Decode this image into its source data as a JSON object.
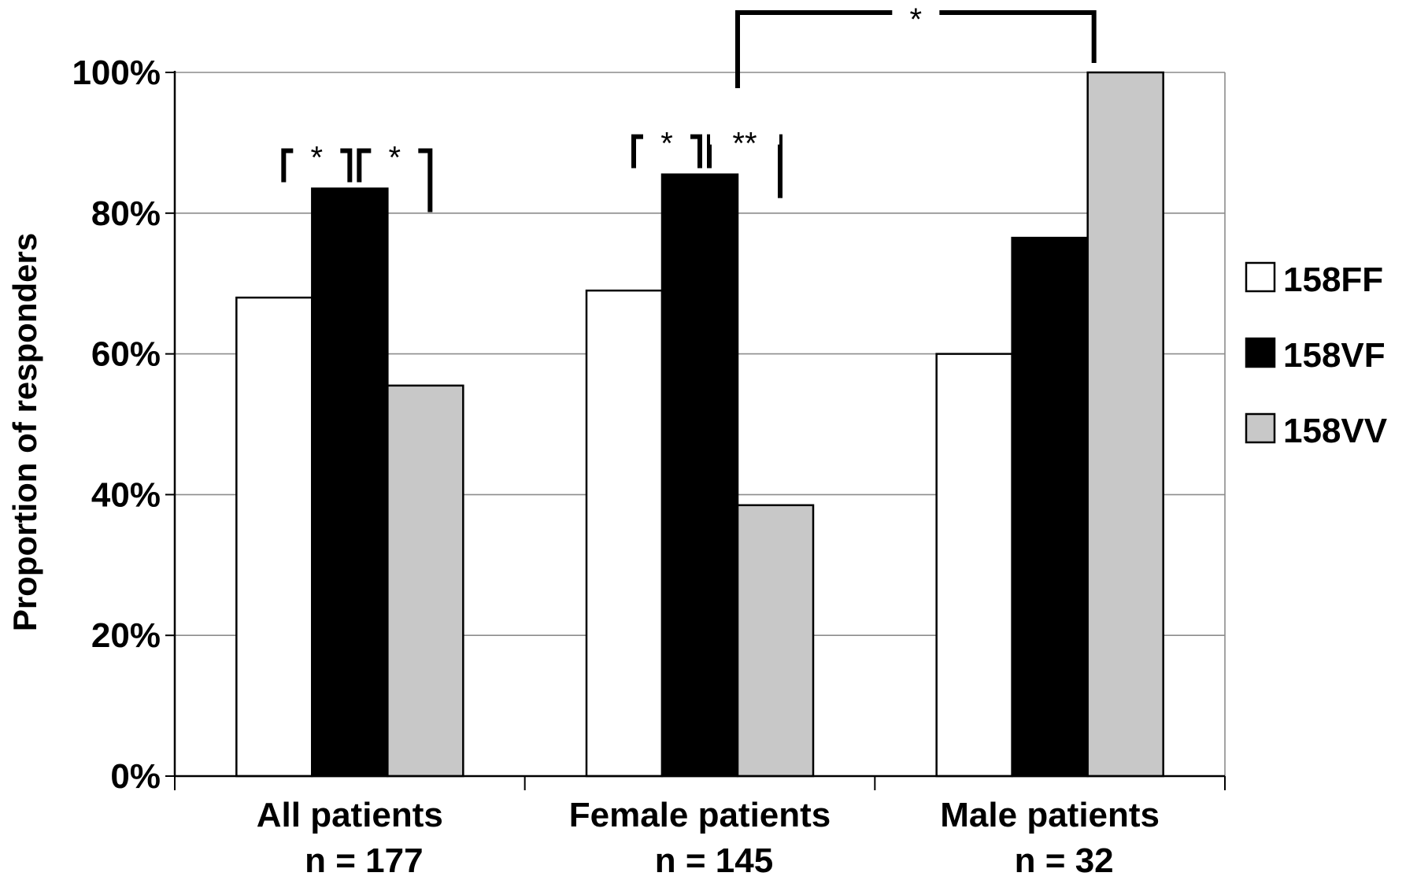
{
  "chart_data": {
    "type": "bar",
    "title": "",
    "xlabel": "",
    "ylabel": "Proportion of responders",
    "ylim": [
      0,
      100
    ],
    "yticks": [
      "0%",
      "20%",
      "40%",
      "60%",
      "80%",
      "100%"
    ],
    "grid": true,
    "legend_position": "right",
    "categories": [
      {
        "label": "All patients",
        "sublabel": "n = 177"
      },
      {
        "label": "Female patients",
        "sublabel": "n = 145"
      },
      {
        "label": "Male patients",
        "sublabel": "n = 32"
      }
    ],
    "series": [
      {
        "name": "158FF",
        "color": "#ffffff",
        "values": [
          68,
          69,
          60
        ]
      },
      {
        "name": "158VF",
        "color": "#000000",
        "values": [
          83.5,
          85.5,
          76.5
        ]
      },
      {
        "name": "158VV",
        "color": "#c8c8c8",
        "values": [
          55.5,
          38.5,
          100
        ]
      }
    ],
    "significance": [
      {
        "category": 0,
        "from_series": 0,
        "to_series": 1,
        "label": "*"
      },
      {
        "category": 0,
        "from_series": 1,
        "to_series": 2,
        "label": "*"
      },
      {
        "category": 1,
        "from_series": 0,
        "to_series": 1,
        "label": "*"
      },
      {
        "category": 1,
        "from_series": 1,
        "to_series": 2,
        "label": "**"
      },
      {
        "from_category": 1,
        "from_series": 2,
        "to_category": 2,
        "to_series": 2,
        "label": "*"
      }
    ]
  }
}
